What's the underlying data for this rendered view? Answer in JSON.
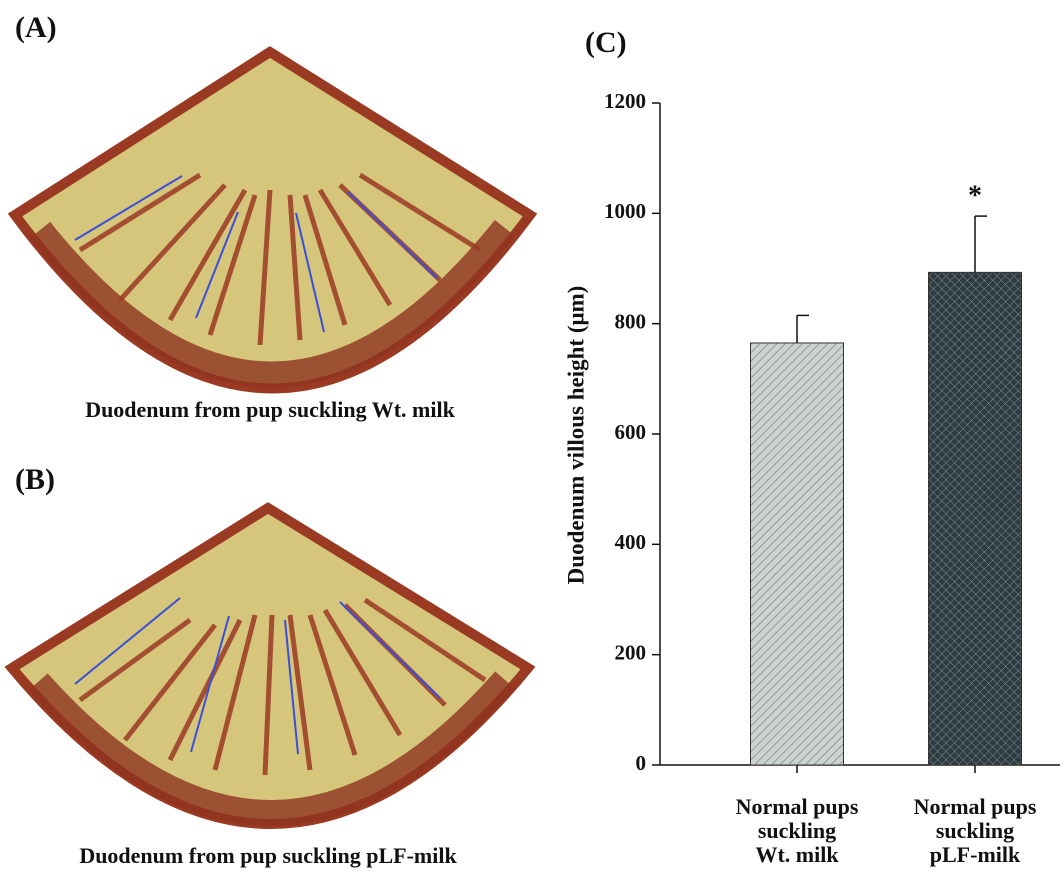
{
  "panels": [
    {
      "label": "(A)",
      "caption": "Duodenum from pup suckling Wt. milk"
    },
    {
      "label": "(B)",
      "caption": "Duodenum from pup suckling pLF-milk"
    }
  ],
  "chart_data": {
    "type": "bar",
    "panel_label": "(C)",
    "ylabel": "Duodenum villous height (μm)",
    "categories": [
      "Normal pups\nsuckling\nWt. milk",
      "Normal pups\nsuckling\npLF-milk"
    ],
    "values": [
      765,
      893
    ],
    "errors": [
      50,
      102
    ],
    "significance": [
      null,
      "*"
    ],
    "colors": [
      "#cdd3d3",
      "#2e3b40"
    ],
    "ylim": [
      0,
      1200
    ],
    "yticks": [
      0,
      200,
      400,
      600,
      800,
      1000,
      1200
    ]
  }
}
